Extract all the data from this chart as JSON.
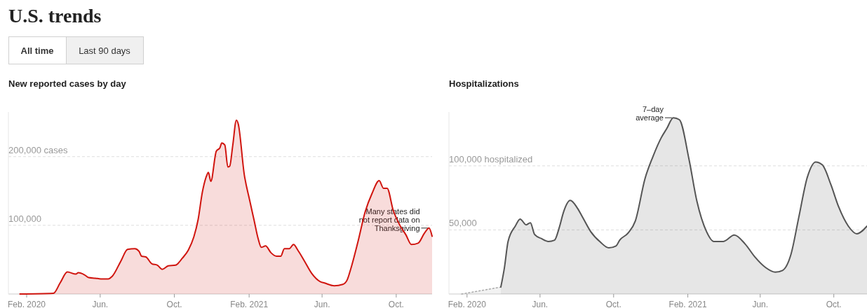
{
  "chart_data": [
    {
      "type": "other",
      "title": "U.S. trends",
      "annotations": [
        "All time",
        "Last 90 days"
      ]
    },
    {
      "type": "area",
      "title": "New reported cases by day",
      "xlim": [
        "2020-01-02",
        "2021-11-29"
      ],
      "ylim": [
        0,
        265000
      ],
      "grid": "y",
      "xticks": [
        {
          "value": "2020-02-01",
          "label": "Feb. 2020"
        },
        {
          "value": "2020-06-01",
          "label": "Jun."
        },
        {
          "value": "2020-10-01",
          "label": "Oct."
        },
        {
          "value": "2021-02-01",
          "label": "Feb. 2021"
        },
        {
          "value": "2021-06-01",
          "label": "Jun."
        },
        {
          "value": "2021-10-01",
          "label": "Oct."
        }
      ],
      "yticks": [
        {
          "value": 100000,
          "label": "100,000"
        },
        {
          "value": 200000,
          "label": "200,000 cases"
        }
      ],
      "annotations": [
        {
          "text": "Many states did\nnot report data on\nThanksgiving",
          "x": "2021-11-25",
          "y": 96000
        }
      ],
      "series": [
        {
          "color": "#d0150f",
          "x": [
            "2020-01-21",
            "2020-03-16",
            "2020-03-27",
            "2020-04-08",
            "2020-04-22",
            "2020-04-26",
            "2020-05-06",
            "2020-05-13",
            "2020-05-24",
            "2020-06-02",
            "2020-06-14",
            "2020-06-21",
            "2020-07-05",
            "2020-07-16",
            "2020-07-28",
            "2020-08-04",
            "2020-08-08",
            "2020-08-15",
            "2020-08-25",
            "2020-09-03",
            "2020-09-11",
            "2020-09-21",
            "2020-10-03",
            "2020-10-14",
            "2020-10-24",
            "2020-11-02",
            "2020-11-09",
            "2020-11-16",
            "2020-11-23",
            "2020-11-26",
            "2020-11-30",
            "2020-12-09",
            "2020-12-15",
            "2020-12-18",
            "2020-12-23",
            "2020-12-28",
            "2020-12-31",
            "2021-01-05",
            "2021-01-11",
            "2021-01-14",
            "2021-01-24",
            "2021-02-02",
            "2021-02-09",
            "2021-02-16",
            "2021-02-21",
            "2021-02-28",
            "2021-03-09",
            "2021-03-18",
            "2021-03-25",
            "2021-03-31",
            "2021-04-08",
            "2021-04-15",
            "2021-04-22",
            "2021-05-03",
            "2021-05-15",
            "2021-05-29",
            "2021-06-05",
            "2021-06-21",
            "2021-07-05",
            "2021-07-12",
            "2021-07-18",
            "2021-07-30",
            "2021-08-11",
            "2021-08-22",
            "2021-09-03",
            "2021-09-10",
            "2021-09-16",
            "2021-09-26",
            "2021-10-07",
            "2021-10-17",
            "2021-10-26",
            "2021-11-06",
            "2021-11-16",
            "2021-11-24",
            "2021-11-29"
          ],
          "values": [
            0,
            1000,
            16000,
            32000,
            29000,
            31000,
            28000,
            24000,
            23000,
            22000,
            22000,
            26000,
            48000,
            65000,
            66000,
            62000,
            55000,
            54000,
            44000,
            42000,
            36000,
            41000,
            42000,
            52000,
            64000,
            83000,
            108000,
            148000,
            172000,
            177000,
            164000,
            208000,
            213000,
            220000,
            217000,
            185000,
            186000,
            216000,
            253000,
            248000,
            174000,
            136000,
            108000,
            80000,
            68000,
            70000,
            60000,
            55000,
            55000,
            66000,
            66000,
            72000,
            64000,
            48000,
            30000,
            18000,
            16000,
            12000,
            14000,
            20000,
            36000,
            76000,
            120000,
            146000,
            165000,
            154000,
            154000,
            122000,
            100000,
            86000,
            72000,
            74000,
            88000,
            96000,
            84000
          ]
        }
      ]
    },
    {
      "type": "area",
      "title": "Hospitalizations",
      "xlim": [
        "2020-01-02",
        "2021-11-25"
      ],
      "ylim": [
        0,
        142000
      ],
      "grid": "y",
      "xticks": [
        {
          "value": "2020-02-01",
          "label": "Feb. 2020"
        },
        {
          "value": "2020-06-01",
          "label": "Jun."
        },
        {
          "value": "2020-10-01",
          "label": "Oct."
        },
        {
          "value": "2021-02-01",
          "label": "Feb. 2021"
        },
        {
          "value": "2021-06-01",
          "label": "Jun."
        },
        {
          "value": "2021-10-01",
          "label": "Oct."
        }
      ],
      "yticks": [
        {
          "value": 50000,
          "label": "50,000"
        },
        {
          "value": 100000,
          "label": "100,000 hospitalized"
        }
      ],
      "annotations": [
        {
          "text": "7–day\naverage",
          "x": "2021-01-08",
          "y": 137500
        }
      ],
      "series": [
        {
          "color": "#aaaaaa",
          "line_style": "dotted",
          "x": [
            "2020-01-23",
            "2020-03-28"
          ],
          "values": [
            0,
            5400
          ]
        },
        {
          "color": "#555555",
          "x": [
            "2020-03-28",
            "2020-04-03",
            "2020-04-09",
            "2020-04-21",
            "2020-04-29",
            "2020-05-09",
            "2020-05-16",
            "2020-05-23",
            "2020-06-03",
            "2020-06-15",
            "2020-06-25",
            "2020-07-03",
            "2020-07-10",
            "2020-07-21",
            "2020-08-02",
            "2020-08-11",
            "2020-08-24",
            "2020-09-09",
            "2020-09-23",
            "2020-10-05",
            "2020-10-11",
            "2020-10-25",
            "2020-11-06",
            "2020-11-22",
            "2020-12-05",
            "2020-12-19",
            "2020-12-28",
            "2021-01-08",
            "2021-01-18",
            "2021-02-03",
            "2021-02-16",
            "2021-03-04",
            "2021-03-16",
            "2021-04-01",
            "2021-04-19",
            "2021-05-07",
            "2021-05-23",
            "2021-06-10",
            "2021-06-26",
            "2021-07-08",
            "2021-07-22",
            "2021-08-04",
            "2021-08-18",
            "2021-09-01",
            "2021-09-12",
            "2021-09-26",
            "2021-10-09",
            "2021-10-25",
            "2021-11-08",
            "2021-11-25"
          ],
          "values": [
            5400,
            20600,
            41000,
            53000,
            58500,
            54000,
            55600,
            46500,
            43300,
            41000,
            42000,
            52000,
            64000,
            73000,
            67000,
            59500,
            48700,
            40500,
            36000,
            37500,
            42000,
            47600,
            57000,
            90000,
            107000,
            122000,
            129000,
            137500,
            136000,
            105000,
            72500,
            48700,
            41000,
            41000,
            46000,
            39000,
            29000,
            20600,
            17000,
            18400,
            31000,
            60000,
            91000,
            103000,
            100700,
            85500,
            68000,
            53000,
            47000,
            53000
          ]
        }
      ]
    }
  ]
}
